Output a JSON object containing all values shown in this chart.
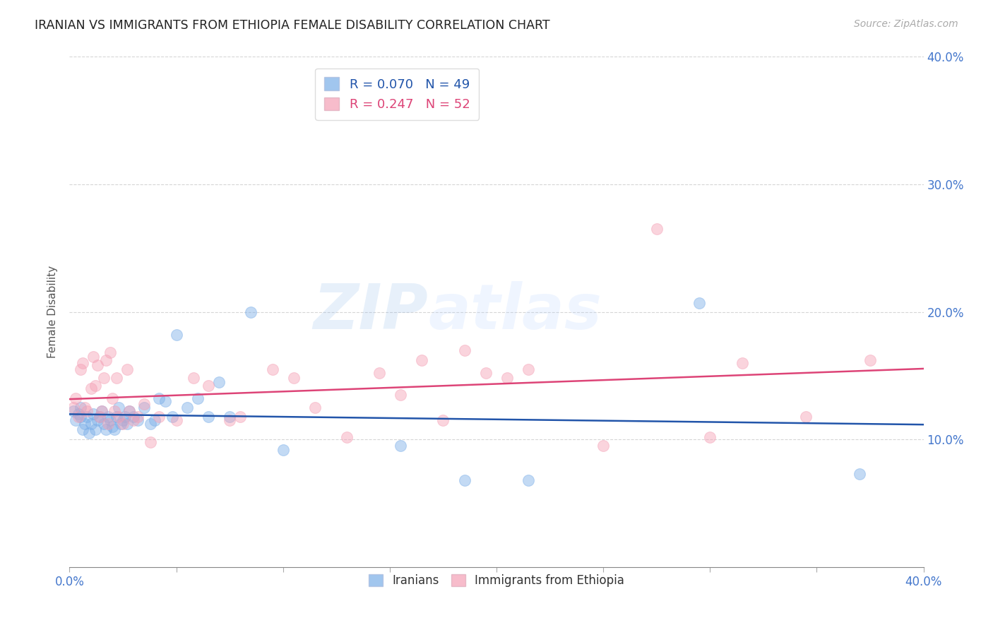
{
  "title": "IRANIAN VS IMMIGRANTS FROM ETHIOPIA FEMALE DISABILITY CORRELATION CHART",
  "source": "Source: ZipAtlas.com",
  "ylabel": "Female Disability",
  "xlim": [
    0.0,
    0.4
  ],
  "ylim": [
    0.0,
    0.4
  ],
  "background_color": "#ffffff",
  "blue_color": "#7aaee8",
  "pink_color": "#f4a0b5",
  "trend_blue": "#2255aa",
  "trend_pink": "#dd4477",
  "legend_R_blue": "R = 0.070",
  "legend_N_blue": "N = 49",
  "legend_R_pink": "R = 0.247",
  "legend_N_pink": "N = 52",
  "iranians_x": [
    0.002,
    0.003,
    0.004,
    0.005,
    0.005,
    0.006,
    0.007,
    0.008,
    0.009,
    0.01,
    0.011,
    0.012,
    0.013,
    0.014,
    0.015,
    0.016,
    0.017,
    0.018,
    0.019,
    0.02,
    0.021,
    0.022,
    0.023,
    0.024,
    0.025,
    0.026,
    0.027,
    0.028,
    0.03,
    0.032,
    0.035,
    0.038,
    0.04,
    0.042,
    0.045,
    0.048,
    0.05,
    0.055,
    0.06,
    0.065,
    0.07,
    0.075,
    0.085,
    0.1,
    0.155,
    0.185,
    0.215,
    0.295,
    0.37
  ],
  "iranians_y": [
    0.122,
    0.115,
    0.12,
    0.118,
    0.125,
    0.108,
    0.112,
    0.118,
    0.105,
    0.112,
    0.12,
    0.108,
    0.115,
    0.118,
    0.122,
    0.112,
    0.108,
    0.118,
    0.115,
    0.11,
    0.108,
    0.118,
    0.125,
    0.112,
    0.115,
    0.118,
    0.112,
    0.122,
    0.118,
    0.115,
    0.125,
    0.112,
    0.115,
    0.132,
    0.13,
    0.118,
    0.182,
    0.125,
    0.132,
    0.118,
    0.145,
    0.118,
    0.2,
    0.092,
    0.095,
    0.068,
    0.068,
    0.207,
    0.073
  ],
  "ethiopia_x": [
    0.002,
    0.003,
    0.004,
    0.005,
    0.006,
    0.007,
    0.008,
    0.01,
    0.011,
    0.012,
    0.013,
    0.014,
    0.015,
    0.016,
    0.017,
    0.018,
    0.019,
    0.02,
    0.021,
    0.022,
    0.023,
    0.025,
    0.027,
    0.028,
    0.03,
    0.032,
    0.035,
    0.038,
    0.042,
    0.05,
    0.058,
    0.065,
    0.075,
    0.08,
    0.095,
    0.105,
    0.115,
    0.13,
    0.145,
    0.155,
    0.165,
    0.175,
    0.185,
    0.195,
    0.205,
    0.215,
    0.25,
    0.275,
    0.3,
    0.315,
    0.345,
    0.375
  ],
  "ethiopia_y": [
    0.125,
    0.132,
    0.118,
    0.155,
    0.16,
    0.125,
    0.122,
    0.14,
    0.165,
    0.142,
    0.158,
    0.118,
    0.122,
    0.148,
    0.162,
    0.112,
    0.168,
    0.132,
    0.122,
    0.148,
    0.118,
    0.112,
    0.155,
    0.122,
    0.115,
    0.118,
    0.128,
    0.098,
    0.118,
    0.115,
    0.148,
    0.142,
    0.115,
    0.118,
    0.155,
    0.148,
    0.125,
    0.102,
    0.152,
    0.135,
    0.162,
    0.115,
    0.17,
    0.152,
    0.148,
    0.155,
    0.095,
    0.265,
    0.102,
    0.16,
    0.118,
    0.162
  ],
  "watermark_zip": "ZIP",
  "watermark_atlas": "atlas",
  "marker_size": 130,
  "marker_alpha": 0.45,
  "line_width": 1.8
}
